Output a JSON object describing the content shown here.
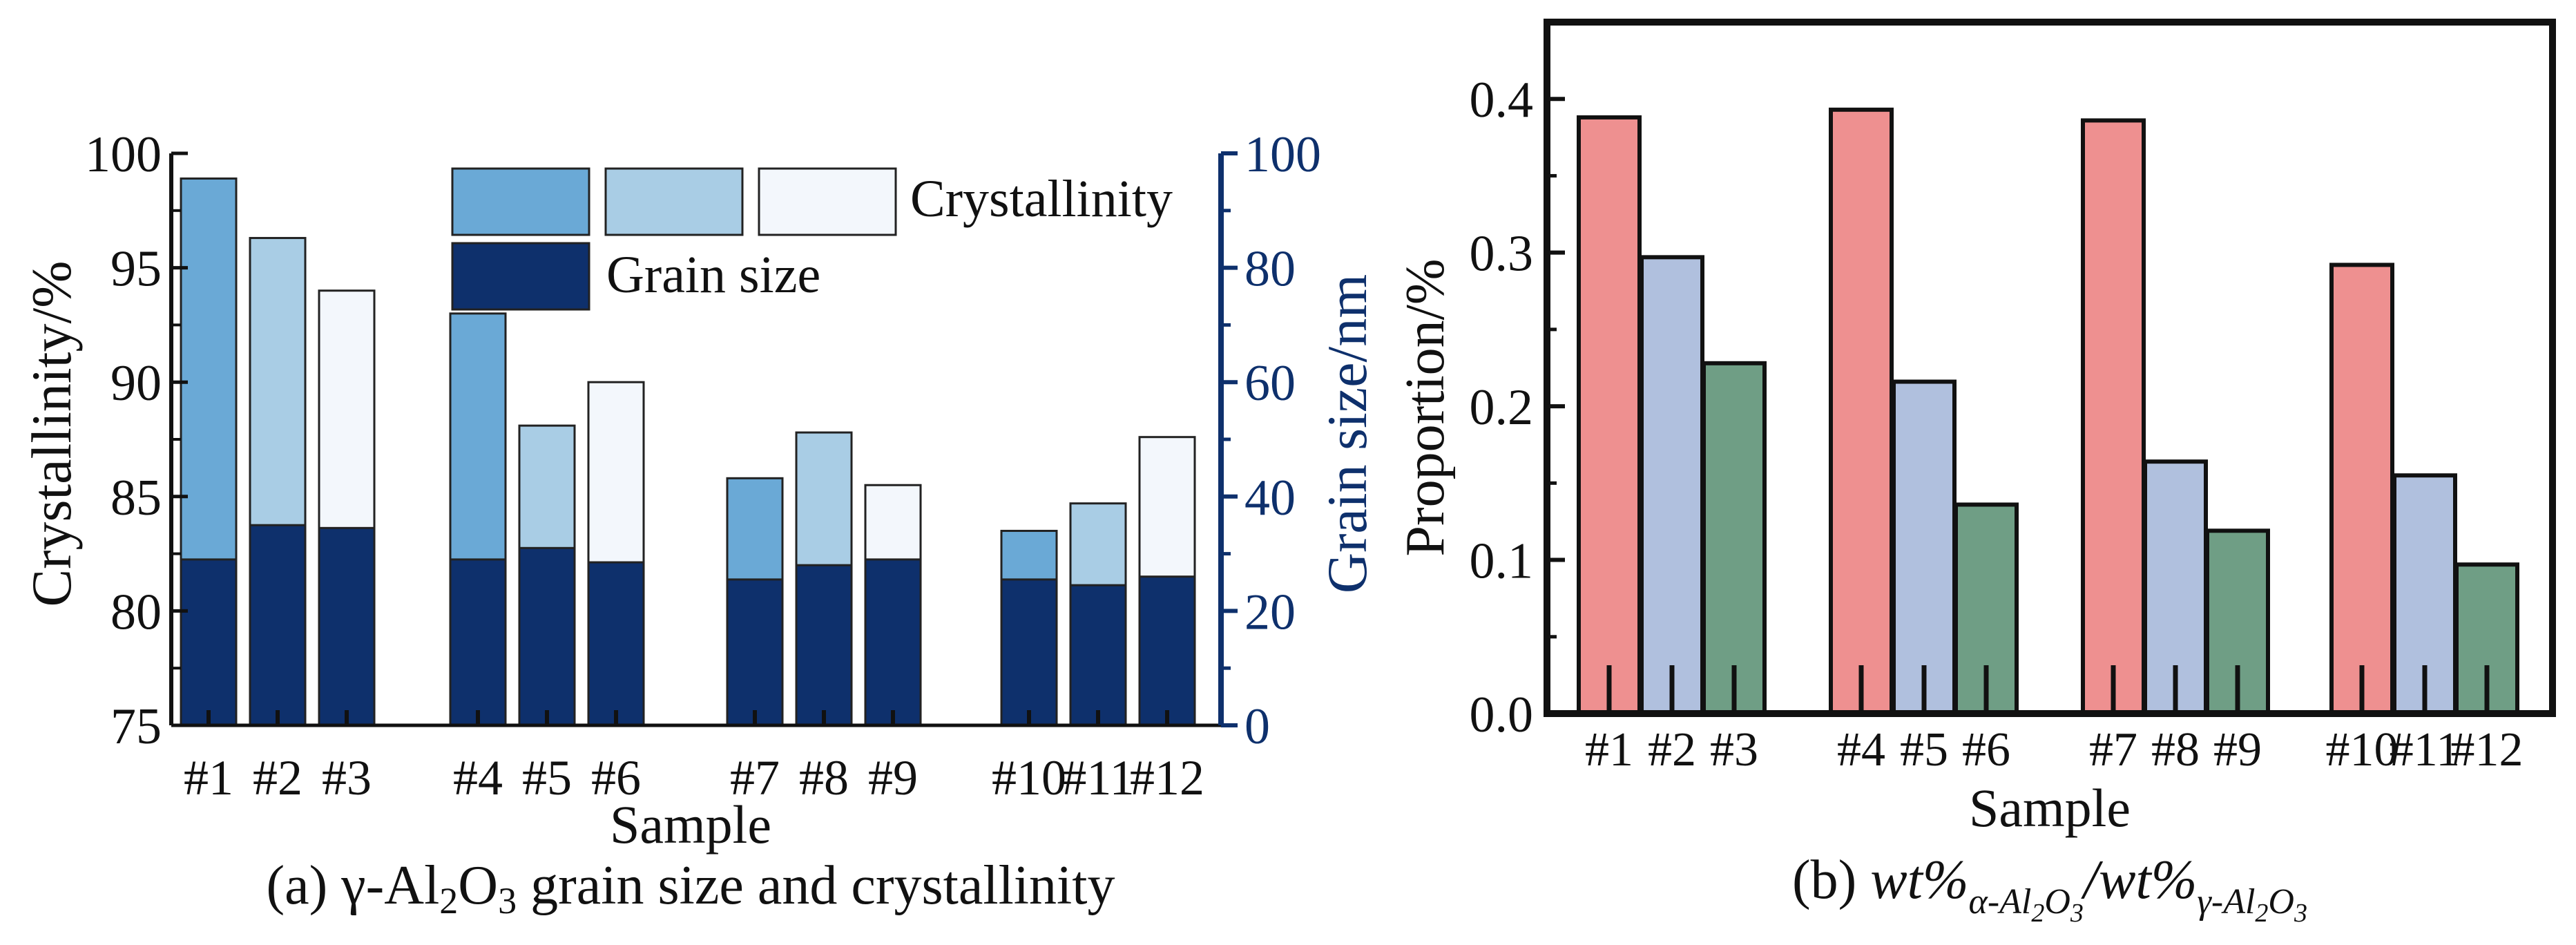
{
  "chart_data": [
    {
      "type": "bar",
      "panel": "a",
      "caption": {
        "prefix": "(a) γ-Al",
        "sub1": "2",
        "mid": "O",
        "sub2": "3",
        "suffix": " grain size and crystallinity"
      },
      "xlabel": "Sample",
      "ylabel_left": "Crystallinity/%",
      "ylabel_right": "Grain size/nm",
      "ylim_left": [
        75,
        100
      ],
      "ylim_right": [
        0,
        100
      ],
      "yticks_left": [
        "75",
        "80",
        "85",
        "90",
        "95",
        "100"
      ],
      "yticks_right": [
        "0",
        "20",
        "40",
        "60",
        "80",
        "100"
      ],
      "categories": [
        "#1",
        "#2",
        "#3",
        "#4",
        "#5",
        "#6",
        "#7",
        "#8",
        "#9",
        "#10",
        "#11",
        "#12"
      ],
      "series": [
        {
          "name": "Crystallinity",
          "axis": "left",
          "values": [
            98.9,
            96.3,
            94.0,
            93.0,
            88.1,
            90.0,
            85.8,
            87.8,
            85.5,
            83.5,
            84.7,
            87.6
          ]
        },
        {
          "name": "Grain size",
          "axis": "right",
          "values": [
            29,
            35,
            34.5,
            29,
            31,
            28.5,
            25.5,
            28,
            29,
            25.5,
            24.5,
            26
          ]
        }
      ],
      "legend": {
        "crystallinity_label": "Crystallinity",
        "grain_label": "Grain size",
        "location": "top-right"
      },
      "colors": {
        "shade1": "#6aa9d6",
        "shade2": "#a9cde5",
        "shade3": "#f3f7fc",
        "grain": "#0e306c",
        "right_axis": "#0e306c"
      }
    },
    {
      "type": "bar",
      "panel": "b",
      "caption": {
        "prefix": "(b) ",
        "num": "wt%",
        "num_sub": "α-Al",
        "num_sub2": "2",
        "num_sub3": "O",
        "num_sub4": "3",
        "slash": "/",
        "den": "wt%",
        "den_sub": "γ-Al",
        "den_sub2": "2",
        "den_sub3": "O",
        "den_sub4": "3"
      },
      "xlabel": "Sample",
      "ylabel": "Proportion/%",
      "ylim": [
        0,
        0.45
      ],
      "yticks": [
        "0.0",
        "0.1",
        "0.2",
        "0.3",
        "0.4"
      ],
      "categories": [
        "#1",
        "#2",
        "#3",
        "#4",
        "#5",
        "#6",
        "#7",
        "#8",
        "#9",
        "#10",
        "#11",
        "#12"
      ],
      "values": [
        0.388,
        0.297,
        0.228,
        0.393,
        0.216,
        0.136,
        0.386,
        0.164,
        0.119,
        0.292,
        0.155,
        0.097
      ],
      "colors": {
        "first": "#ee9090",
        "second": "#b0c0de",
        "third": "#6f9e85"
      }
    }
  ]
}
